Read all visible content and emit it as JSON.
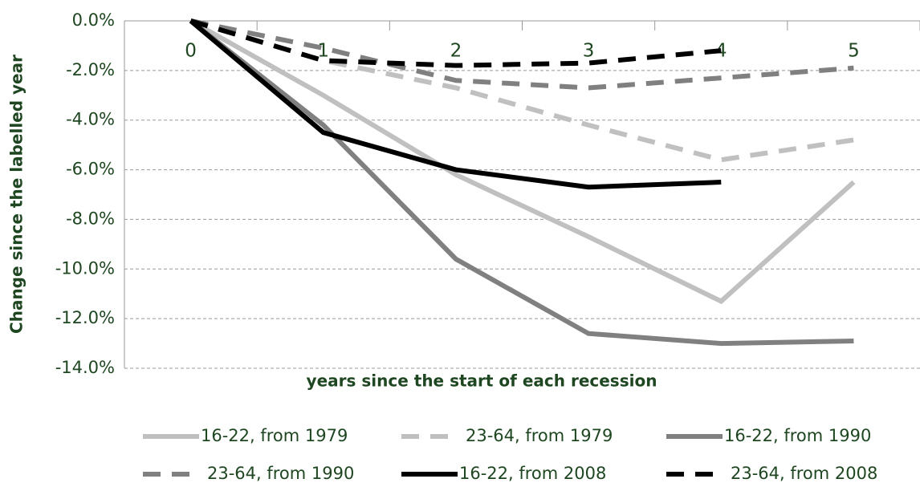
{
  "chart_data": {
    "type": "line",
    "x_label": "years since the start of each recession",
    "y_label": "Change since the labelled year",
    "categories": [
      "0",
      "1",
      "2",
      "3",
      "4",
      "5"
    ],
    "ylim": [
      -14,
      0
    ],
    "yticks": [
      {
        "value": -14,
        "label": "-14.0%"
      },
      {
        "value": -12,
        "label": "-12.0%"
      },
      {
        "value": -10,
        "label": "-10.0%"
      },
      {
        "value": -8,
        "label": "-8.0%"
      },
      {
        "value": -6,
        "label": "-6.0%"
      },
      {
        "value": -4,
        "label": "-4.0%"
      },
      {
        "value": -2,
        "label": "-2.0%"
      },
      {
        "value": 0,
        "label": "0.0%"
      }
    ],
    "grid": true,
    "legend": "bottom",
    "series": [
      {
        "name": "16-22, from 1979",
        "color": "#c0c0c0",
        "dashed": false,
        "values": [
          0,
          -3.0,
          -6.2,
          -8.7,
          -11.3,
          -6.5
        ]
      },
      {
        "name": "23-64, from 1979",
        "color": "#c0c0c0",
        "dashed": true,
        "values": [
          0,
          -1.6,
          -2.7,
          -4.2,
          -5.6,
          -4.8
        ]
      },
      {
        "name": "16-22, from 1990",
        "color": "#808080",
        "dashed": false,
        "values": [
          0,
          -4.2,
          -9.6,
          -12.6,
          -13.0,
          -12.9
        ]
      },
      {
        "name": "23-64, from 1990",
        "color": "#808080",
        "dashed": true,
        "values": [
          0,
          -1.1,
          -2.4,
          -2.7,
          -2.3,
          -1.9
        ]
      },
      {
        "name": "16-22, from 2008",
        "color": "#000000",
        "dashed": false,
        "values": [
          0,
          -4.5,
          -6.0,
          -6.7,
          -6.5,
          null
        ]
      },
      {
        "name": "23-64, from 2008",
        "color": "#000000",
        "dashed": true,
        "values": [
          0,
          -1.6,
          -1.8,
          -1.7,
          -1.2,
          null
        ]
      }
    ]
  }
}
